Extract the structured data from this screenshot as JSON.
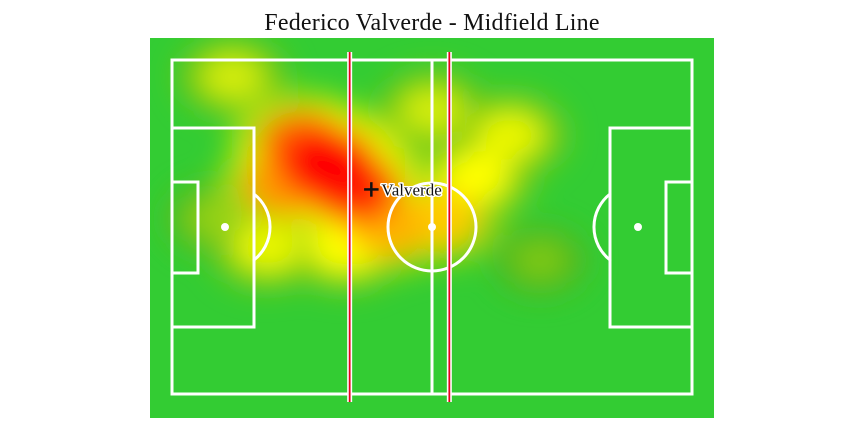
{
  "title": "Federico Valverde - Midfield Line",
  "colors": {
    "pitch": "#33cc33",
    "lines": "#ffffff",
    "midfield_line": "#e8001c",
    "heat_low": "#2aa52a",
    "heat_mid": "#ffff00",
    "heat_high": "#ff0000"
  },
  "chart_data": {
    "type": "heatmap",
    "title": "Federico Valverde - Midfield Line",
    "xlim": [
      0,
      120
    ],
    "ylim": [
      0,
      80
    ],
    "average_position": {
      "name": "Valverde",
      "x": 46,
      "y": 31
    },
    "midfield_line_x": [
      41,
      64
    ],
    "heat_blobs": [
      {
        "x": 36,
        "y": 25,
        "intensity": 1.0
      },
      {
        "x": 42,
        "y": 31,
        "intensity": 0.9
      },
      {
        "x": 30,
        "y": 20,
        "intensity": 0.8
      },
      {
        "x": 26,
        "y": 30,
        "intensity": 0.7
      },
      {
        "x": 50,
        "y": 40,
        "intensity": 0.65
      },
      {
        "x": 62,
        "y": 38,
        "intensity": 0.6
      },
      {
        "x": 70,
        "y": 28,
        "intensity": 0.5
      },
      {
        "x": 78,
        "y": 18,
        "intensity": 0.45
      },
      {
        "x": 60,
        "y": 12,
        "intensity": 0.4
      },
      {
        "x": 22,
        "y": 45,
        "intensity": 0.45
      },
      {
        "x": 40,
        "y": 45,
        "intensity": 0.5
      },
      {
        "x": 14,
        "y": 4,
        "intensity": 0.4
      },
      {
        "x": 10,
        "y": 38,
        "intensity": 0.25
      },
      {
        "x": 85,
        "y": 48,
        "intensity": 0.2
      }
    ]
  }
}
